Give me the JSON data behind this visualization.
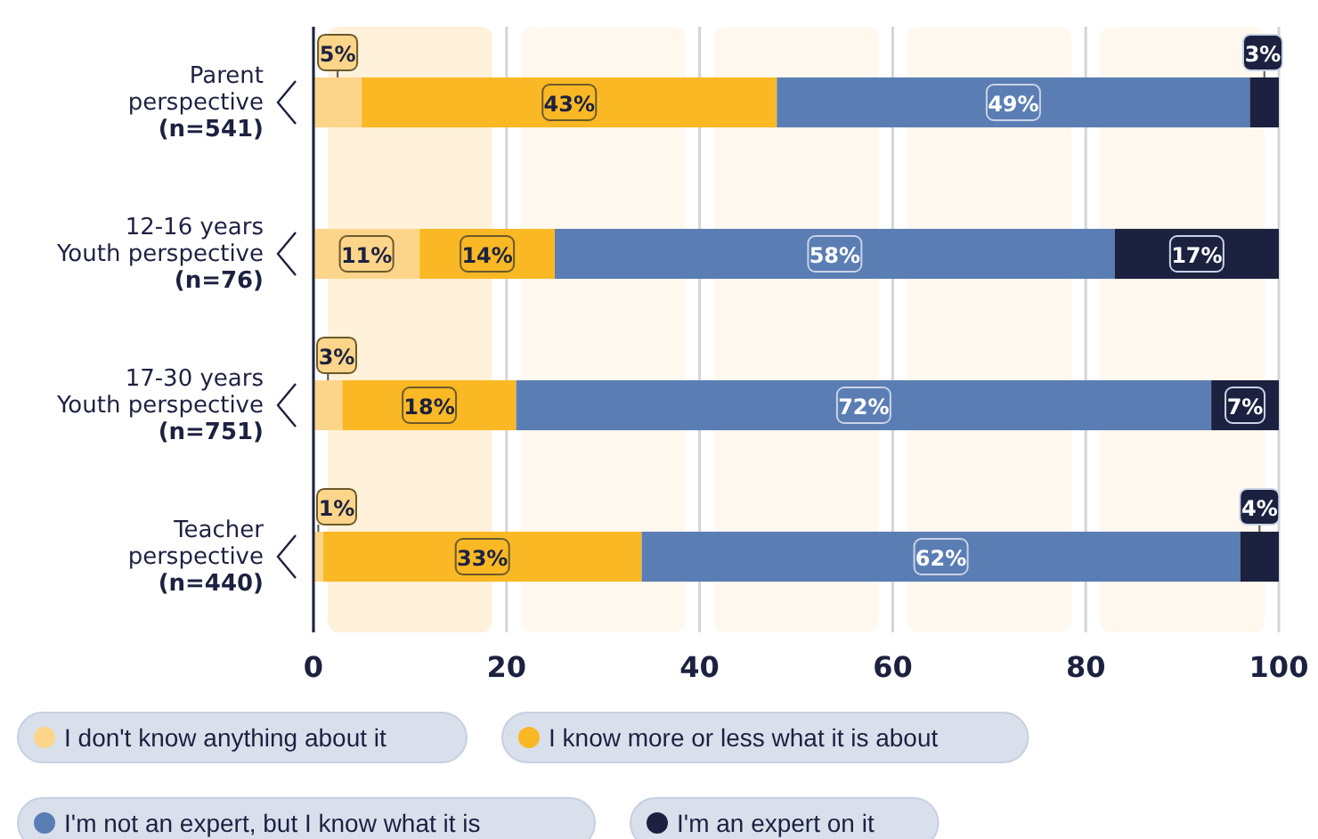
{
  "chart_data": {
    "type": "bar",
    "orientation": "horizontal",
    "stacked": true,
    "categories": [
      "Parent\nperspective\n(n=541)",
      "12-16 years\nYouth perspective\n(n=76)",
      "17-30 years\nYouth perspective\n(n=751)",
      "Teacher\nperspective\n(n=440)"
    ],
    "series": [
      {
        "name": "I don't know anything about it",
        "color": "#fdd58a",
        "values": [
          5,
          11,
          3,
          1
        ],
        "value_labels": [
          "5%",
          "11%",
          "3%",
          "1%"
        ]
      },
      {
        "name": "I know more or less what it is about",
        "color": "#f9b824",
        "values": [
          43,
          14,
          18,
          33
        ],
        "value_labels": [
          "43%",
          "14%",
          "18%",
          "33%"
        ]
      },
      {
        "name": "I'm not an expert, but I know what it is",
        "color": "#5a7db4",
        "values": [
          49,
          58,
          72,
          62
        ],
        "value_labels": [
          "49%",
          "58%",
          "72%",
          "62%"
        ]
      },
      {
        "name": "I'm an expert on it",
        "color": "#1c2140",
        "values": [
          3,
          17,
          7,
          4
        ],
        "value_labels": [
          "3%",
          "17%",
          "7%",
          "4%"
        ]
      }
    ],
    "bands": [
      {
        "axis": "x",
        "from": 1.5,
        "to": 18.5,
        "color": "#fff1da"
      },
      {
        "axis": "x",
        "from": 21.5,
        "to": 38.5,
        "color": "#fff8ee"
      },
      {
        "axis": "x",
        "from": 41.5,
        "to": 58.5,
        "color": "#fff8ee"
      },
      {
        "axis": "x",
        "from": 61.5,
        "to": 78.5,
        "color": "#fff8ee"
      },
      {
        "axis": "x",
        "from": 81.5,
        "to": 98.5,
        "color": "#fff8ee"
      }
    ],
    "xlim": [
      0,
      100
    ],
    "xticks": [
      0,
      20,
      40,
      60,
      80,
      100
    ],
    "grid": "x",
    "legend": "bottom"
  }
}
